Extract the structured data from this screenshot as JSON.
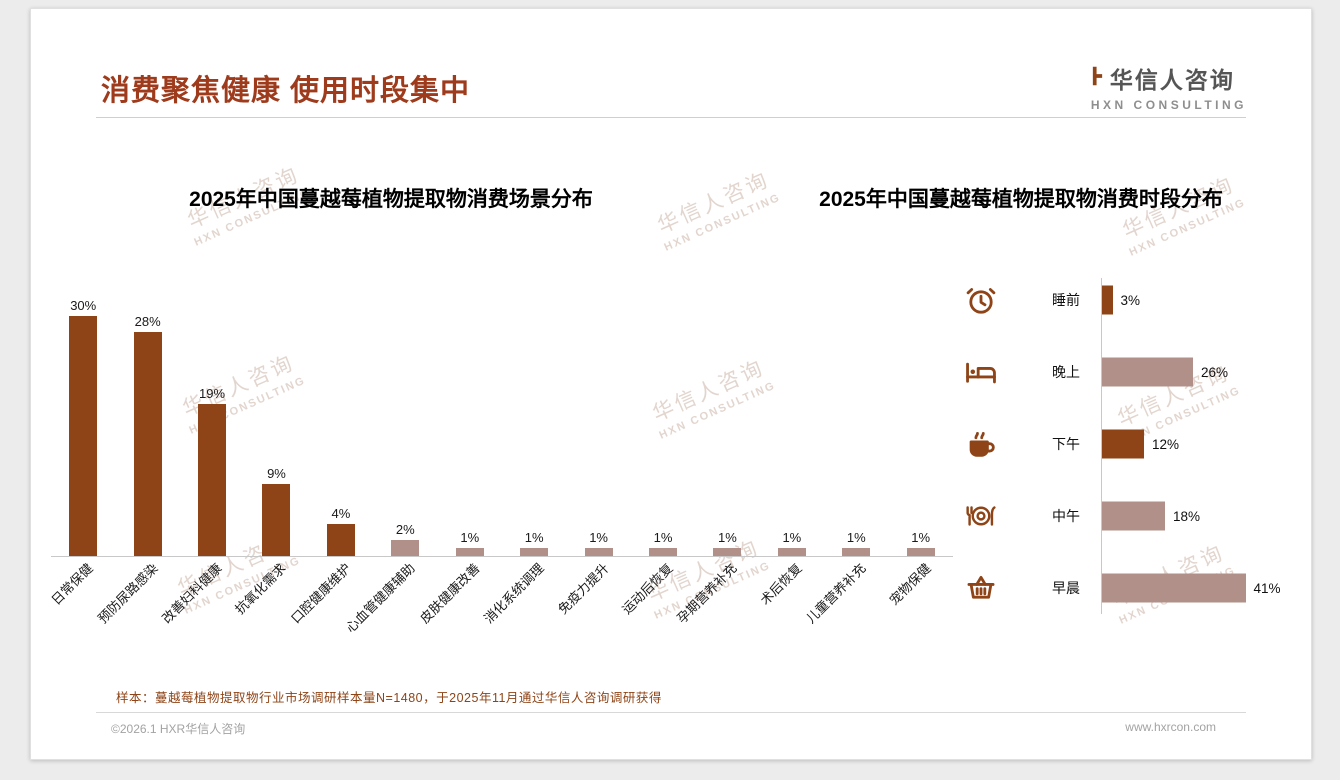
{
  "header": {
    "title": "消费聚焦健康 使用时段集中",
    "logo_cn": "华信人咨询",
    "logo_en": "HXN CONSULTING"
  },
  "watermark": {
    "line1": "华信人咨询",
    "line2": "HXN CONSULTING"
  },
  "colors": {
    "title": "#9e3b1c",
    "bar_dark": "#8e4417",
    "bar_light": "#b1908a",
    "icon": "#8e4417",
    "note": "#8e4417",
    "axis": "#c8c8c8"
  },
  "chart_data": [
    {
      "type": "bar",
      "title": "2025年中国蔓越莓植物提取物消费场景分布",
      "categories": [
        "日常保健",
        "预防尿路感染",
        "改善妇科健康",
        "抗氧化需求",
        "口腔健康维护",
        "心血管健康辅助",
        "皮肤健康改善",
        "消化系统调理",
        "免疫力提升",
        "运动后恢复",
        "孕期营养补充",
        "术后恢复",
        "儿童营养补充",
        "宠物保健"
      ],
      "values": [
        30,
        28,
        19,
        9,
        4,
        2,
        1,
        1,
        1,
        1,
        1,
        1,
        1,
        1
      ],
      "unit": "%",
      "bar_styles": [
        "dark",
        "dark",
        "dark",
        "dark",
        "dark",
        "light",
        "light",
        "light",
        "light",
        "light",
        "light",
        "light",
        "light",
        "light"
      ],
      "ylim": [
        0,
        30
      ],
      "grid": "off",
      "legend": "none",
      "value_labels": "above bars"
    },
    {
      "type": "bar-horizontal",
      "title": "2025年中国蔓越莓植物提取物消费时段分布",
      "categories": [
        "睡前",
        "晚上",
        "下午",
        "中午",
        "早晨"
      ],
      "values": [
        3,
        26,
        12,
        18,
        41
      ],
      "unit": "%",
      "bar_styles": [
        "dark",
        "light",
        "dark",
        "light",
        "light"
      ],
      "icons": [
        "alarm-clock-icon",
        "bed-icon",
        "coffee-icon",
        "meal-icon",
        "basket-icon"
      ],
      "xlim": [
        0,
        45
      ],
      "grid": "off",
      "legend": "none",
      "value_labels": "right of bars"
    }
  ],
  "footer": {
    "note": "样本：蔓越莓植物提取物行业市场调研样本量N=1480，于2025年11月通过华信人咨询调研获得",
    "copyright": "©2026.1 HXR华信人咨询",
    "website": "www.hxrcon.com"
  }
}
